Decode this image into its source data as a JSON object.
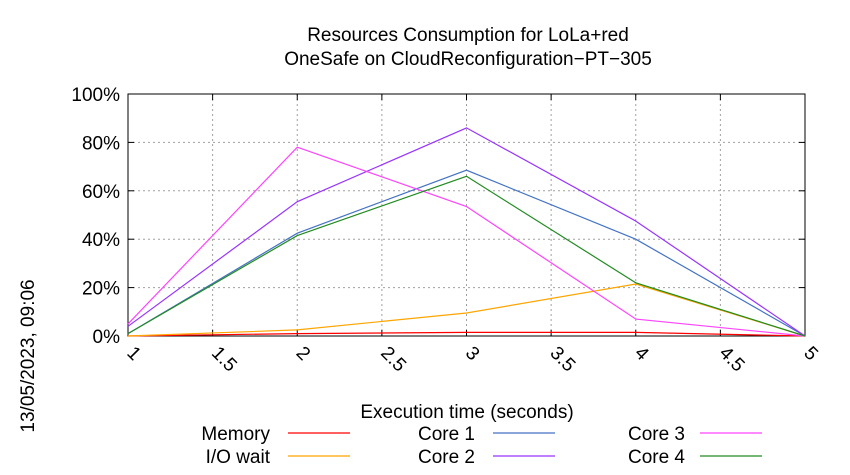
{
  "chart_data": {
    "type": "line",
    "title": "Resources Consumption for LoLa+red",
    "subtitle": "OneSafe on CloudReconfiguration−PT−305",
    "xlabel": "Execution time (seconds)",
    "ylabel": "",
    "xlim": [
      1,
      5
    ],
    "ylim": [
      0,
      100
    ],
    "x_ticks": [
      "1",
      "1.5",
      "2",
      "2.5",
      "3",
      "3.5",
      "4",
      "4.5",
      "5"
    ],
    "y_ticks": [
      "0%",
      "20%",
      "40%",
      "60%",
      "80%",
      "100%"
    ],
    "grid": true,
    "legend_position": "bottom",
    "timestamp": "13/05/2023, 09:06",
    "series": [
      {
        "name": "Memory",
        "color": "#ff0000",
        "x": [
          1,
          2,
          3,
          4,
          5
        ],
        "values": [
          0,
          1,
          1.5,
          1.5,
          0
        ]
      },
      {
        "name": "I/O wait",
        "color": "#ffa500",
        "x": [
          1,
          2,
          3,
          4,
          5
        ],
        "values": [
          0,
          2.5,
          9.5,
          21.5,
          0
        ]
      },
      {
        "name": "Core 1",
        "color": "#4472c4",
        "x": [
          1,
          2,
          3,
          4,
          5
        ],
        "values": [
          1,
          42.5,
          68.5,
          40,
          0
        ]
      },
      {
        "name": "Core 2",
        "color": "#9933ff",
        "x": [
          1,
          2,
          3,
          4,
          5
        ],
        "values": [
          4,
          55.5,
          86,
          47.5,
          0
        ]
      },
      {
        "name": "Core 3",
        "color": "#ff44ff",
        "x": [
          1,
          2,
          3,
          4,
          5
        ],
        "values": [
          5,
          78,
          53.5,
          7,
          0
        ]
      },
      {
        "name": "Core 4",
        "color": "#228b22",
        "x": [
          1,
          2,
          3,
          4,
          5
        ],
        "values": [
          1,
          41.5,
          66,
          22,
          0
        ]
      }
    ]
  }
}
